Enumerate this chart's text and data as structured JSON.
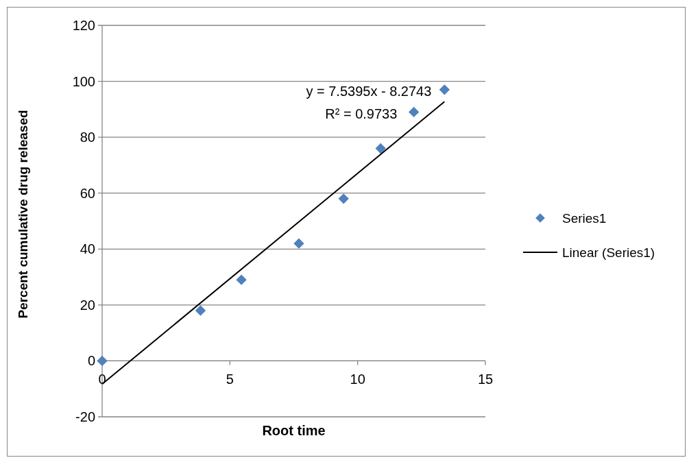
{
  "chart_data": {
    "type": "scatter",
    "xlabel": "Root time",
    "ylabel": "Percent cumulative drug released",
    "series": [
      {
        "name": "Series1",
        "color": "#4f81bd",
        "x": [
          0,
          3.85,
          5.45,
          7.7,
          9.45,
          10.9,
          12.2,
          13.4
        ],
        "values": [
          0,
          18,
          29,
          42,
          58,
          76,
          89,
          97
        ]
      },
      {
        "name": "Linear (Series1)",
        "type": "line",
        "marker": "none",
        "color": "#000000",
        "x": [
          0,
          13.4
        ],
        "values": [
          -8.3,
          92.7
        ]
      }
    ],
    "annotations": [
      "y = 7.5395x - 8.2743",
      "R² = 0.9733"
    ],
    "xlim": [
      0,
      15
    ],
    "xticks": [
      0,
      5,
      10,
      15
    ],
    "ylim": [
      -20,
      120
    ],
    "yticks": [
      -20,
      0,
      20,
      40,
      60,
      80,
      100,
      120
    ],
    "grid": "y",
    "legend": "right",
    "marker": "diamond"
  }
}
